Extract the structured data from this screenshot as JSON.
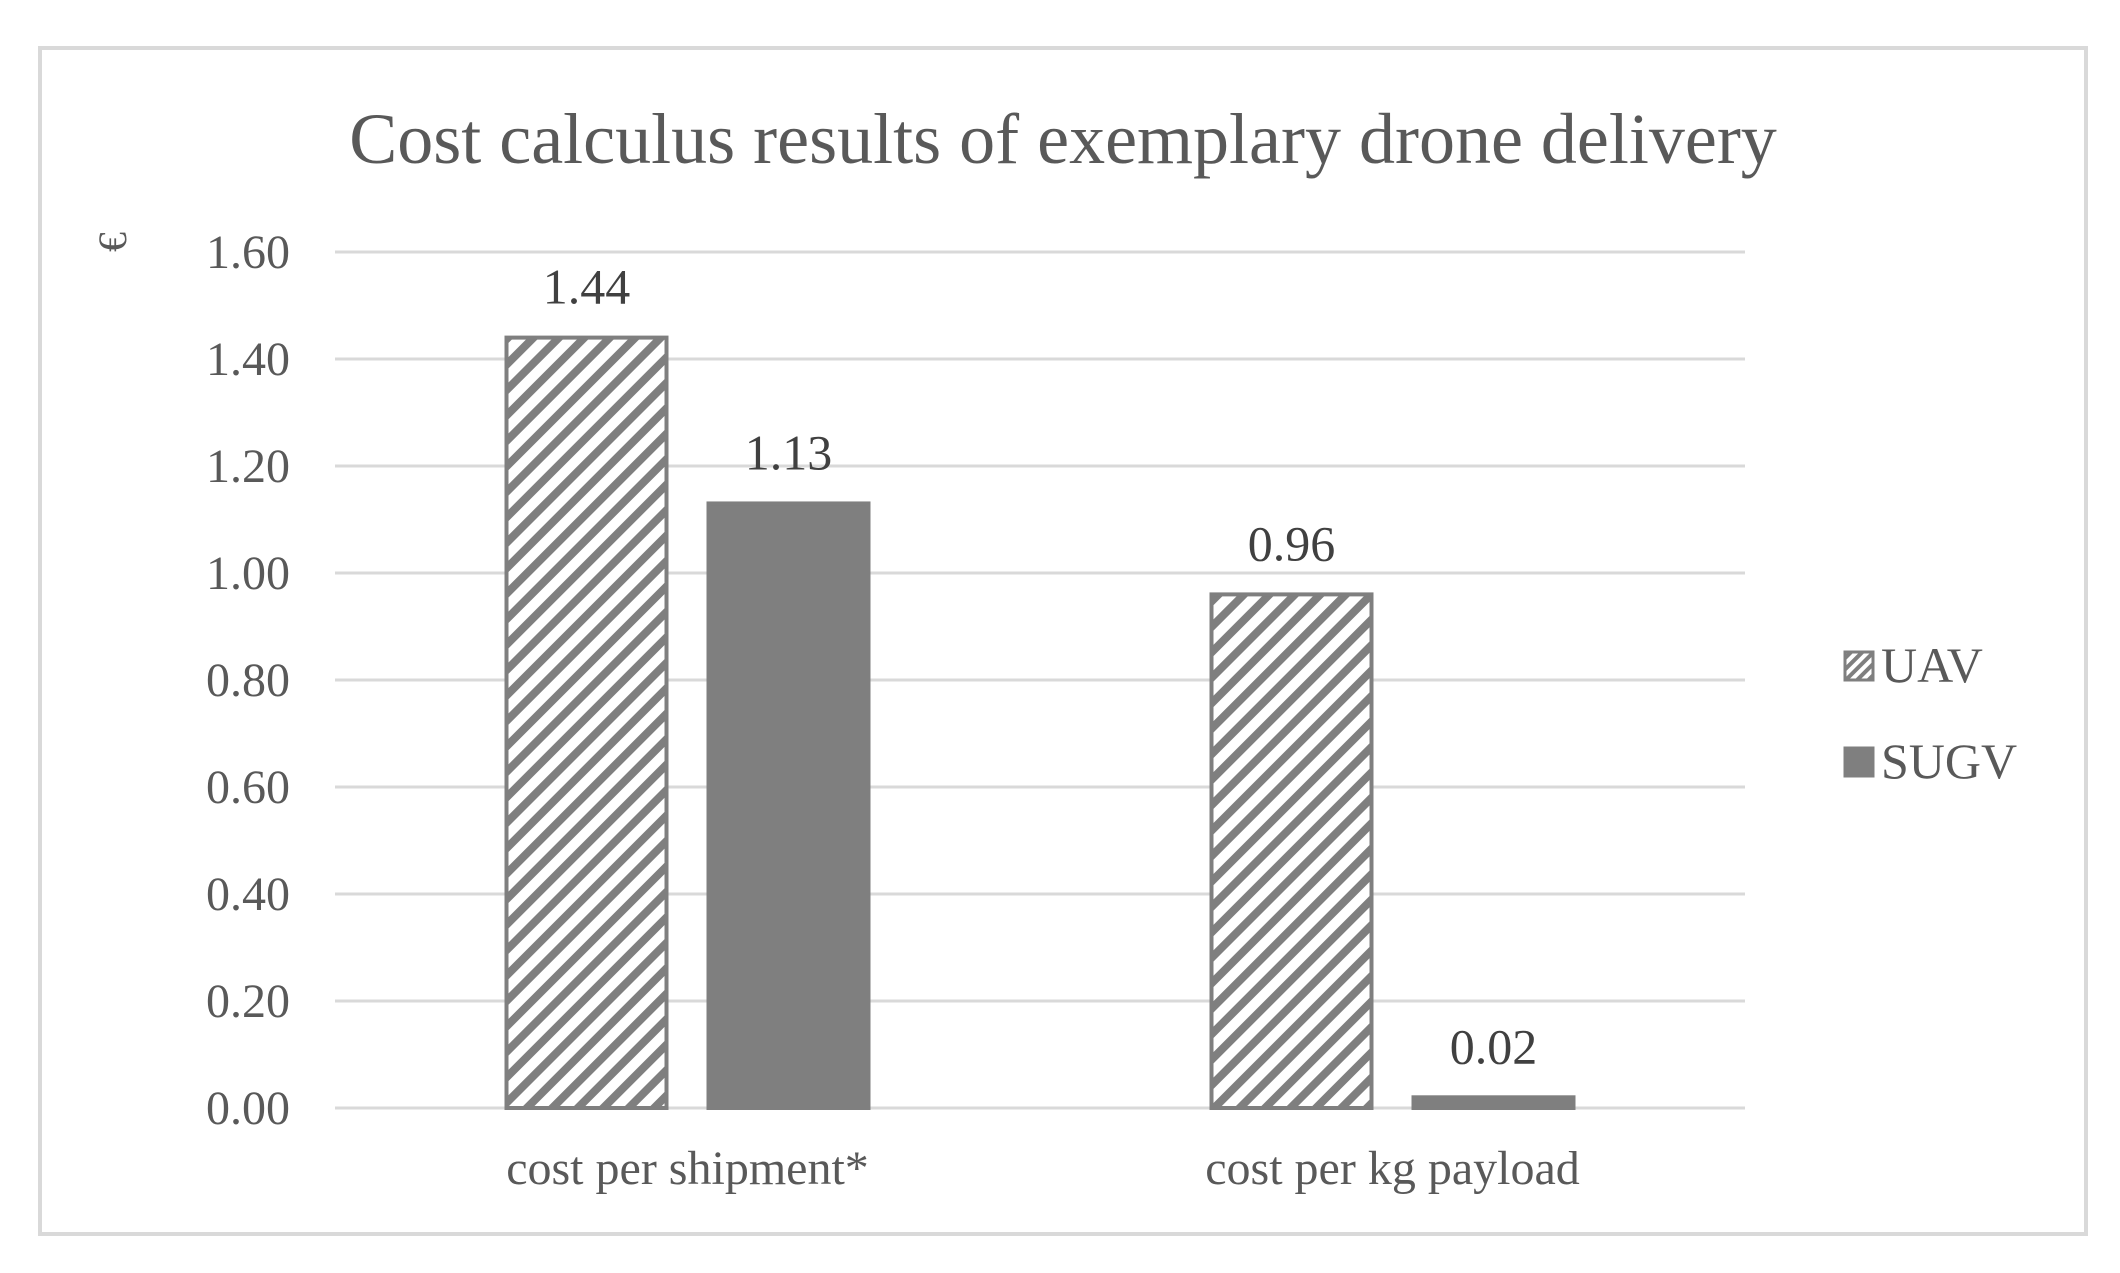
{
  "chart_data": {
    "type": "bar",
    "title": "Cost calculus results of exemplary drone delivery",
    "ylabel": "€",
    "xlabel": "",
    "categories": [
      "cost per shipment*",
      "cost per kg payload"
    ],
    "series": [
      {
        "name": "UAV",
        "values": [
          1.44,
          0.96
        ],
        "fill": "hatched",
        "color": "#7f7f7f"
      },
      {
        "name": "SUGV",
        "values": [
          1.13,
          0.02
        ],
        "fill": "solid",
        "color": "#7f7f7f"
      }
    ],
    "data_labels": [
      [
        "1.44",
        "0.96"
      ],
      [
        "1.13",
        "0.02"
      ]
    ],
    "ylim": [
      0,
      1.6
    ],
    "yticks": [
      "0.00",
      "0.20",
      "0.40",
      "0.60",
      "0.80",
      "1.00",
      "1.20",
      "1.40",
      "1.60"
    ],
    "grid": true,
    "legend_position": "right",
    "colors": {
      "bar": "#7f7f7f",
      "grid": "#d9d9d9",
      "text": "#595959",
      "frame": "#d9d9d9"
    }
  }
}
